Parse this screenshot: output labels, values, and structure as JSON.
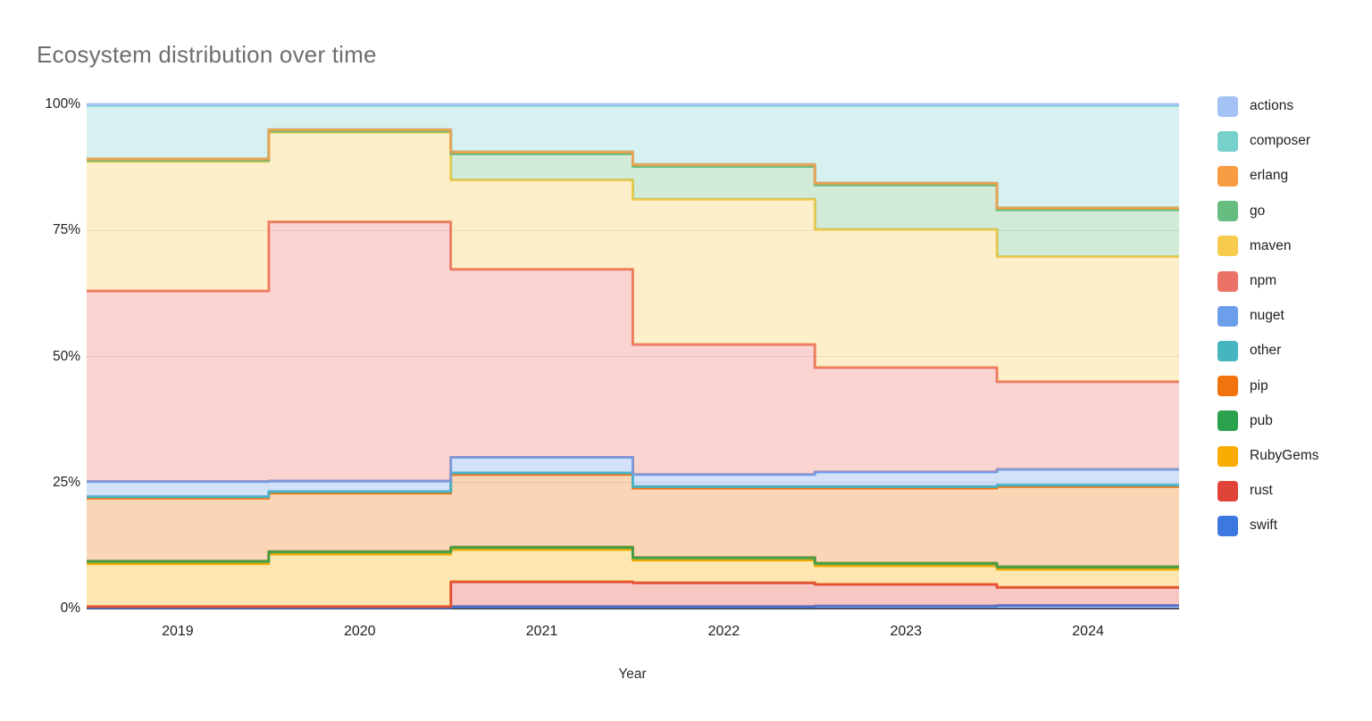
{
  "title": "Ecosystem distribution over time",
  "axes": {
    "x_title": "Year",
    "y_tick_labels": [
      "100%",
      "75%",
      "50%",
      "25%",
      "0%"
    ],
    "y_tick_values": [
      100,
      75,
      50,
      25,
      0
    ],
    "x_tick_labels": [
      "2019",
      "2020",
      "2021",
      "2022",
      "2023",
      "2024"
    ]
  },
  "style_colors": {
    "grid": "#e3e3e3",
    "baseline": "#4a4a4a",
    "title_text": "#6e6e6e",
    "axis_text": "#1f1f1f"
  },
  "chart_data": {
    "type": "area",
    "variant": "stepped-stacked-100-percent",
    "grid": true,
    "legend_position": "right",
    "ylim": [
      0,
      100
    ],
    "fill_opacity": 0.3,
    "categories": [
      "2019",
      "2020",
      "2021",
      "2022",
      "2023",
      "2024"
    ],
    "stack_order_bottom_up": [
      "swift",
      "rust",
      "RubyGems",
      "pub",
      "pip",
      "other",
      "nuget",
      "npm",
      "maven",
      "go",
      "erlang",
      "composer",
      "actions"
    ],
    "series": [
      {
        "name": "actions",
        "color": "#A4C2F4",
        "values": [
          0.2,
          0.2,
          0.2,
          0.2,
          0.2,
          0.2
        ]
      },
      {
        "name": "composer",
        "color": "#76D0CB",
        "values": [
          10.6,
          4.8,
          9.2,
          11.7,
          15.4,
          20.3
        ]
      },
      {
        "name": "erlang",
        "color": "#F99D45",
        "values": [
          0.3,
          0.3,
          0.4,
          0.4,
          0.4,
          0.4
        ]
      },
      {
        "name": "go",
        "color": "#67BD7F",
        "values": [
          0.2,
          0.2,
          5.2,
          6.5,
          8.8,
          9.3
        ]
      },
      {
        "name": "maven",
        "color": "#F7CB4D",
        "values": [
          25.7,
          17.8,
          17.7,
          28.8,
          27.4,
          24.8
        ]
      },
      {
        "name": "npm",
        "color": "#EB7266",
        "values": [
          37.8,
          51.4,
          37.3,
          25.8,
          20.7,
          17.4
        ]
      },
      {
        "name": "nuget",
        "color": "#6D9EEB",
        "values": [
          3.0,
          2.1,
          3.1,
          2.4,
          2.9,
          3.1
        ]
      },
      {
        "name": "other",
        "color": "#45B6C0",
        "values": [
          0.3,
          0.3,
          0.3,
          0.3,
          0.3,
          0.3
        ]
      },
      {
        "name": "pip",
        "color": "#F0730E",
        "values": [
          12.5,
          11.6,
          14.4,
          13.8,
          14.9,
          15.9
        ]
      },
      {
        "name": "pub",
        "color": "#2CA24F",
        "values": [
          0.5,
          0.5,
          0.5,
          0.5,
          0.5,
          0.5
        ]
      },
      {
        "name": "RubyGems",
        "color": "#F9AB00",
        "values": [
          8.5,
          10.4,
          6.4,
          4.5,
          3.7,
          3.6
        ]
      },
      {
        "name": "rust",
        "color": "#E04438",
        "values": [
          0.2,
          0.2,
          4.9,
          4.7,
          4.3,
          3.6
        ]
      },
      {
        "name": "swift",
        "color": "#3D78E0",
        "values": [
          0.2,
          0.2,
          0.4,
          0.4,
          0.5,
          0.6
        ]
      }
    ]
  }
}
